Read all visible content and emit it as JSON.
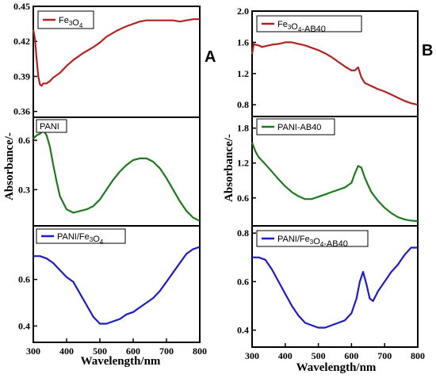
{
  "figure": {
    "y_axis_label": "Absorbance/-",
    "x_axis_label": "Wavelength/nm",
    "panel_labels": [
      "A",
      "B"
    ]
  },
  "chart_data": [
    {
      "type": "line",
      "panel": "A",
      "subplot": 1,
      "xlim": [
        300,
        800
      ],
      "ylim": [
        0.355,
        0.45
      ],
      "xticks": [],
      "yticks": [
        0.36,
        0.39,
        0.42,
        0.45
      ],
      "yticklabels": [
        "0.36",
        "0.39",
        "0.42",
        "0.45"
      ],
      "series": [
        {
          "name": "Fe3O4",
          "color": "#b22222",
          "x": [
            300,
            305,
            310,
            315,
            320,
            325,
            330,
            340,
            350,
            360,
            380,
            400,
            420,
            450,
            480,
            500,
            520,
            550,
            580,
            600,
            620,
            640,
            660,
            680,
            700,
            720,
            740,
            760,
            780,
            800
          ],
          "y": [
            0.43,
            0.422,
            0.405,
            0.39,
            0.383,
            0.382,
            0.384,
            0.384,
            0.386,
            0.389,
            0.393,
            0.399,
            0.404,
            0.41,
            0.415,
            0.419,
            0.424,
            0.429,
            0.433,
            0.435,
            0.437,
            0.438,
            0.438,
            0.438,
            0.438,
            0.438,
            0.437,
            0.438,
            0.439,
            0.439
          ]
        }
      ],
      "legend": [
        {
          "base": "Fe",
          "sub1": "3",
          "mid": "O",
          "sub2": "4",
          "suffix": ""
        }
      ]
    },
    {
      "type": "line",
      "panel": "A",
      "subplot": 2,
      "xlim": [
        300,
        800
      ],
      "ylim": [
        0.08,
        0.74
      ],
      "xticks": [],
      "yticks": [
        0.3,
        0.6
      ],
      "yticklabels": [
        "0.3",
        "0.6"
      ],
      "series": [
        {
          "name": "PANI",
          "color": "#1e7a1e",
          "x": [
            300,
            310,
            320,
            330,
            340,
            350,
            360,
            370,
            380,
            400,
            420,
            440,
            460,
            480,
            500,
            520,
            540,
            560,
            580,
            600,
            620,
            640,
            660,
            680,
            700,
            720,
            740,
            760,
            780,
            800
          ],
          "y": [
            0.61,
            0.63,
            0.64,
            0.66,
            0.63,
            0.56,
            0.45,
            0.35,
            0.26,
            0.18,
            0.16,
            0.17,
            0.18,
            0.2,
            0.24,
            0.3,
            0.36,
            0.41,
            0.45,
            0.48,
            0.49,
            0.49,
            0.47,
            0.43,
            0.37,
            0.3,
            0.23,
            0.17,
            0.13,
            0.11
          ]
        }
      ],
      "legend": [
        {
          "base": "PANI",
          "sub1": "",
          "mid": "",
          "sub2": "",
          "suffix": ""
        }
      ]
    },
    {
      "type": "line",
      "panel": "A",
      "subplot": 3,
      "xlim": [
        300,
        800
      ],
      "ylim": [
        0.33,
        0.83
      ],
      "xticks": [
        300,
        400,
        500,
        600,
        700,
        800
      ],
      "xticklabels": [
        "300",
        "400",
        "500",
        "600",
        "700",
        "800"
      ],
      "yticks": [
        0.4,
        0.6
      ],
      "yticklabels": [
        "0.4",
        "0.6"
      ],
      "series": [
        {
          "name": "PANI/Fe3O4",
          "color": "#1c1cc8",
          "x": [
            300,
            320,
            340,
            360,
            380,
            400,
            420,
            440,
            460,
            480,
            500,
            520,
            540,
            560,
            580,
            600,
            620,
            640,
            660,
            680,
            700,
            720,
            740,
            760,
            780,
            800
          ],
          "y": [
            0.7,
            0.7,
            0.69,
            0.67,
            0.64,
            0.61,
            0.59,
            0.54,
            0.49,
            0.44,
            0.41,
            0.41,
            0.42,
            0.43,
            0.45,
            0.46,
            0.48,
            0.5,
            0.52,
            0.55,
            0.59,
            0.63,
            0.67,
            0.71,
            0.73,
            0.74
          ]
        }
      ],
      "legend": [
        {
          "base": "PANI/Fe",
          "sub1": "3",
          "mid": "O",
          "sub2": "4",
          "suffix": ""
        }
      ]
    },
    {
      "type": "line",
      "panel": "B",
      "subplot": 1,
      "xlim": [
        300,
        800
      ],
      "ylim": [
        0.65,
        2.0
      ],
      "xticks": [],
      "yticks": [
        0.8,
        1.2,
        1.6,
        2.0
      ],
      "yticklabels": [
        "0.8",
        "1.2",
        "1.6",
        "2.0"
      ],
      "series": [
        {
          "name": "Fe3O4-AB40",
          "color": "#b22222",
          "x": [
            300,
            305,
            310,
            320,
            330,
            340,
            350,
            360,
            380,
            400,
            420,
            440,
            460,
            480,
            500,
            520,
            540,
            560,
            580,
            600,
            610,
            620,
            630,
            640,
            660,
            680,
            700,
            720,
            740,
            760,
            780,
            800
          ],
          "y": [
            1.45,
            1.58,
            1.57,
            1.56,
            1.54,
            1.55,
            1.56,
            1.57,
            1.58,
            1.6,
            1.6,
            1.58,
            1.56,
            1.53,
            1.5,
            1.46,
            1.41,
            1.35,
            1.29,
            1.24,
            1.24,
            1.28,
            1.15,
            1.08,
            1.04,
            1.0,
            0.97,
            0.93,
            0.89,
            0.85,
            0.82,
            0.8
          ]
        }
      ],
      "legend": [
        {
          "base": "Fe",
          "sub1": "3",
          "mid": "O",
          "sub2": "4",
          "suffix": "-AB40"
        }
      ]
    },
    {
      "type": "line",
      "panel": "B",
      "subplot": 2,
      "xlim": [
        300,
        800
      ],
      "ylim": [
        0.12,
        2.0
      ],
      "xticks": [],
      "yticks": [
        0.6,
        1.2,
        1.8
      ],
      "yticklabels": [
        "0.6",
        "1.2",
        "1.8"
      ],
      "series": [
        {
          "name": "PANI-AB40",
          "color": "#1e7a1e",
          "x": [
            300,
            310,
            320,
            340,
            360,
            380,
            400,
            420,
            440,
            460,
            480,
            500,
            520,
            540,
            560,
            580,
            600,
            610,
            620,
            630,
            640,
            650,
            660,
            680,
            700,
            720,
            740,
            760,
            780,
            800
          ],
          "y": [
            1.55,
            1.4,
            1.3,
            1.18,
            1.05,
            0.92,
            0.8,
            0.7,
            0.63,
            0.58,
            0.58,
            0.62,
            0.66,
            0.7,
            0.74,
            0.78,
            0.86,
            1.02,
            1.15,
            1.12,
            0.95,
            0.82,
            0.7,
            0.55,
            0.43,
            0.34,
            0.27,
            0.23,
            0.21,
            0.2
          ]
        }
      ],
      "legend": [
        {
          "base": "PANI-AB40",
          "sub1": "",
          "mid": "",
          "sub2": "",
          "suffix": ""
        }
      ]
    },
    {
      "type": "line",
      "panel": "B",
      "subplot": 3,
      "xlim": [
        300,
        800
      ],
      "ylim": [
        0.33,
        0.83
      ],
      "xticks": [
        300,
        400,
        500,
        600,
        700,
        800
      ],
      "xticklabels": [
        "300",
        "400",
        "500",
        "600",
        "700",
        "800"
      ],
      "yticks": [
        0.4,
        0.6,
        0.8
      ],
      "yticklabels": [
        "0.4",
        "0.6",
        "0.8"
      ],
      "series": [
        {
          "name": "PANI/Fe3O4-AB40",
          "color": "#1c1cc8",
          "x": [
            300,
            320,
            340,
            360,
            380,
            400,
            420,
            440,
            460,
            480,
            500,
            520,
            540,
            560,
            580,
            600,
            615,
            625,
            635,
            645,
            655,
            665,
            680,
            700,
            720,
            740,
            760,
            780,
            800
          ],
          "y": [
            0.7,
            0.7,
            0.69,
            0.65,
            0.6,
            0.55,
            0.5,
            0.46,
            0.43,
            0.42,
            0.41,
            0.41,
            0.42,
            0.43,
            0.44,
            0.47,
            0.53,
            0.6,
            0.64,
            0.59,
            0.53,
            0.52,
            0.56,
            0.6,
            0.64,
            0.67,
            0.71,
            0.74,
            0.74
          ]
        }
      ],
      "legend": [
        {
          "base": "PANI/Fe",
          "sub1": "3",
          "mid": "O",
          "sub2": "4",
          "suffix": "-AB40"
        }
      ]
    }
  ]
}
